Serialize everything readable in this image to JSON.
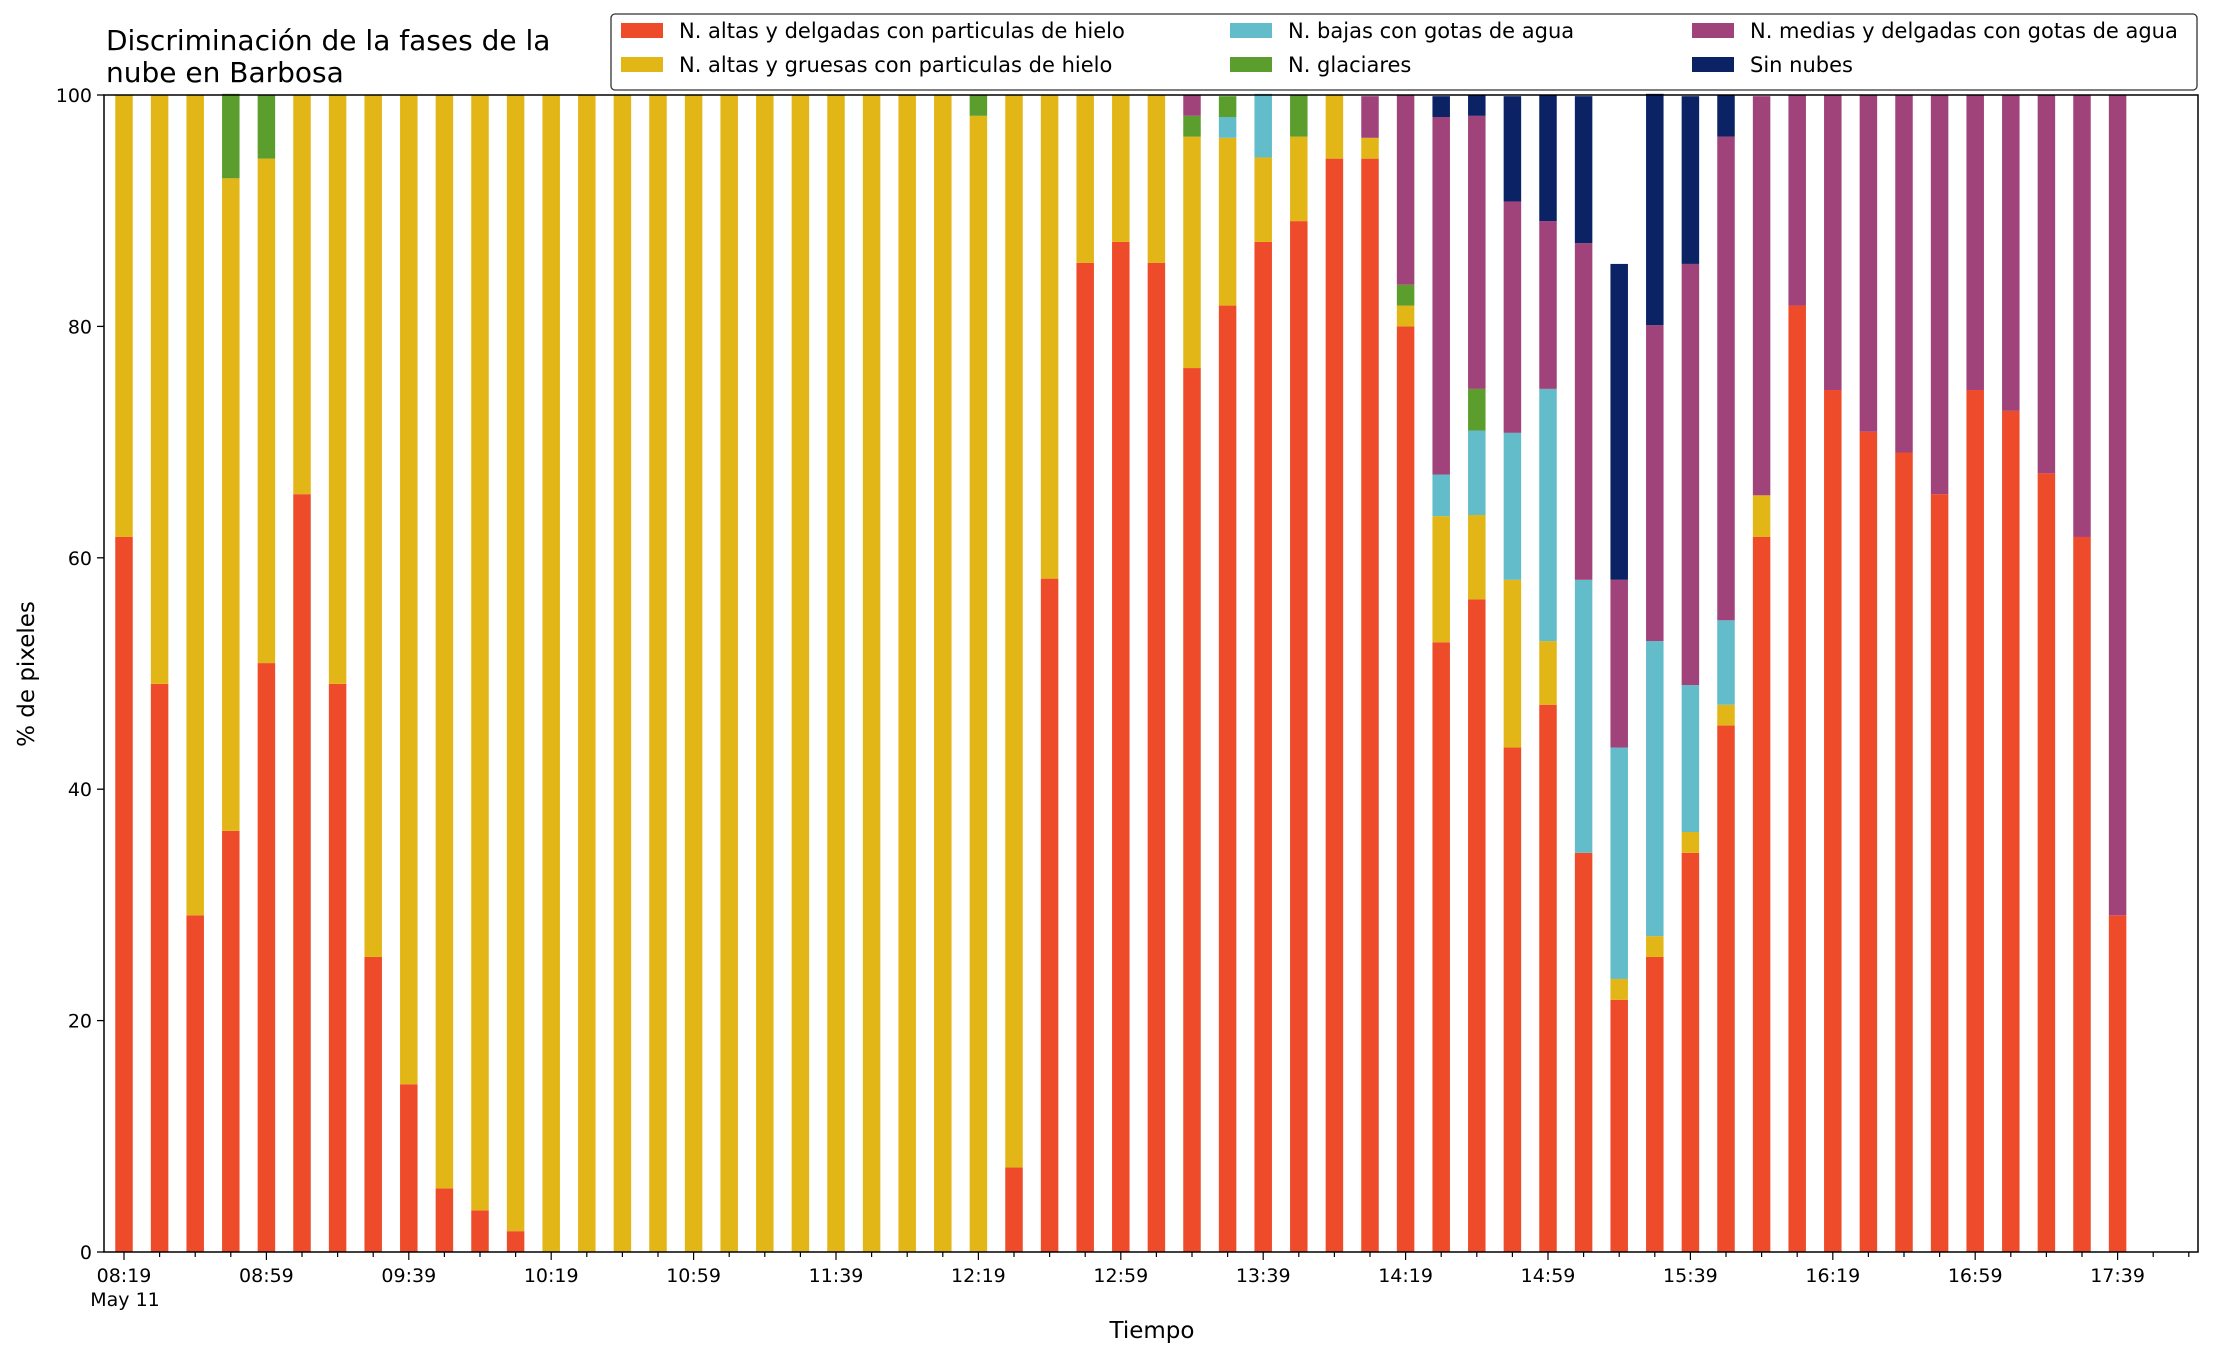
{
  "chart_data": {
    "type": "bar",
    "stacked": true,
    "title_lines": [
      "Discriminación de la fases de la",
      "nube en Barbosa"
    ],
    "xlabel": "Tiempo",
    "ylabel": "% de pixeles",
    "ylim": [
      0,
      100
    ],
    "yticks": [
      0,
      20,
      40,
      60,
      80,
      100
    ],
    "grid": false,
    "legend_position": "top-right",
    "x_tick_labels": [
      "08:19",
      "08:59",
      "09:39",
      "10:19",
      "10:59",
      "11:39",
      "12:19",
      "12:59",
      "13:39",
      "14:19",
      "14:59",
      "15:39",
      "16:19",
      "16:59",
      "17:39"
    ],
    "x_tick_sublabel": "May 11",
    "categories": [
      "08:19",
      "08:29",
      "08:39",
      "08:49",
      "08:59",
      "09:09",
      "09:19",
      "09:29",
      "09:39",
      "09:49",
      "09:59",
      "10:09",
      "10:19",
      "10:29",
      "10:39",
      "10:49",
      "10:59",
      "11:09",
      "11:19",
      "11:29",
      "11:39",
      "11:49",
      "11:59",
      "12:09",
      "12:19",
      "12:29",
      "12:39",
      "12:49",
      "12:59",
      "13:09",
      "13:19",
      "13:29",
      "13:39",
      "13:49",
      "13:59",
      "14:09",
      "14:19",
      "14:29",
      "14:39",
      "14:49",
      "14:59",
      "15:09",
      "15:19",
      "15:29",
      "15:39",
      "15:49",
      "15:59",
      "16:09",
      "16:19",
      "16:29",
      "16:39",
      "16:49",
      "16:59",
      "17:09",
      "17:19",
      "17:29",
      "17:39",
      "17:49"
    ],
    "series": [
      {
        "name": "N. altas y delgadas con particulas de hielo",
        "color": "#ee4b2b",
        "values": [
          61.8,
          49.1,
          29.1,
          36.4,
          50.9,
          65.5,
          49.1,
          25.5,
          14.5,
          5.5,
          3.6,
          1.8,
          0,
          0,
          0,
          0,
          0,
          0,
          0,
          0,
          0,
          0,
          0,
          0,
          0,
          7.3,
          58.2,
          85.5,
          87.3,
          85.5,
          76.4,
          81.8,
          87.3,
          89.1,
          94.5,
          94.5,
          80.0,
          52.7,
          56.4,
          43.6,
          47.3,
          34.5,
          21.8,
          25.5,
          34.5,
          45.5,
          61.8,
          81.8,
          74.5,
          70.9,
          69.1,
          65.5,
          74.5,
          72.7,
          67.3,
          61.8,
          29.1,
          0
        ]
      },
      {
        "name": "N. altas y gruesas con particulas de hielo",
        "color": "#e3b617",
        "values": [
          38.2,
          50.9,
          70.9,
          56.4,
          43.6,
          34.5,
          50.9,
          74.5,
          85.5,
          94.5,
          96.4,
          98.2,
          100,
          100,
          100,
          100,
          100,
          100,
          100,
          100,
          100,
          100,
          100,
          100,
          98.2,
          92.7,
          41.8,
          14.5,
          12.7,
          14.5,
          20.0,
          14.5,
          7.3,
          7.3,
          5.5,
          1.8,
          1.8,
          10.9,
          7.3,
          14.5,
          5.5,
          0,
          1.8,
          1.8,
          1.8,
          1.8,
          3.6,
          0,
          0,
          0,
          0,
          0,
          0,
          0,
          0,
          0,
          0,
          0
        ]
      },
      {
        "name": "N. bajas con gotas de agua",
        "color": "#62bcc9",
        "values": [
          0,
          0,
          0,
          0,
          0,
          0,
          0,
          0,
          0,
          0,
          0,
          0,
          0,
          0,
          0,
          0,
          0,
          0,
          0,
          0,
          0,
          0,
          0,
          0,
          0,
          0,
          0,
          0,
          0,
          0,
          0,
          1.8,
          5.5,
          0,
          0,
          0,
          0,
          3.6,
          7.3,
          12.7,
          21.8,
          23.6,
          20.0,
          25.5,
          12.7,
          7.3,
          0,
          0,
          0,
          0,
          0,
          0,
          0,
          0,
          0,
          0,
          0,
          0
        ]
      },
      {
        "name": "N. glaciares",
        "color": "#5c9e2e",
        "values": [
          0,
          0,
          0,
          7.3,
          5.5,
          0,
          0,
          0,
          0,
          0,
          0,
          0,
          0,
          0,
          0,
          0,
          0,
          0,
          0,
          0,
          0,
          0,
          0,
          0,
          1.8,
          0,
          0,
          0,
          0,
          0,
          1.8,
          1.8,
          0,
          3.6,
          0,
          0,
          1.8,
          0,
          3.6,
          0,
          0,
          0,
          0,
          0,
          0,
          0,
          0,
          0,
          0,
          0,
          0,
          0,
          0,
          0,
          0,
          0,
          0,
          0
        ]
      },
      {
        "name": "N. medias y delgadas con gotas de agua",
        "color": "#a0437a",
        "values": [
          0,
          0,
          0,
          0,
          0,
          0,
          0,
          0,
          0,
          0,
          0,
          0,
          0,
          0,
          0,
          0,
          0,
          0,
          0,
          0,
          0,
          0,
          0,
          0,
          0,
          0,
          0,
          0,
          0,
          0,
          1.8,
          0,
          0,
          0,
          0,
          3.6,
          16.4,
          30.9,
          23.6,
          20.0,
          14.5,
          29.1,
          14.5,
          27.3,
          36.4,
          41.8,
          34.5,
          18.2,
          25.5,
          29.1,
          30.9,
          34.5,
          25.5,
          27.3,
          32.7,
          38.2,
          70.9,
          0
        ]
      },
      {
        "name": "Sin nubes",
        "color": "#0b2264",
        "values": [
          0,
          0,
          0,
          0,
          0,
          0,
          0,
          0,
          0,
          0,
          0,
          0,
          0,
          0,
          0,
          0,
          0,
          0,
          0,
          0,
          0,
          0,
          0,
          0,
          0,
          0,
          0,
          0,
          0,
          0,
          0,
          0,
          0,
          0,
          0,
          0,
          0,
          1.8,
          1.8,
          9.1,
          10.9,
          12.7,
          27.3,
          20.0,
          14.5,
          3.6,
          0,
          0,
          0,
          0,
          0,
          0,
          0,
          0,
          0,
          0,
          0,
          0
        ]
      }
    ]
  }
}
